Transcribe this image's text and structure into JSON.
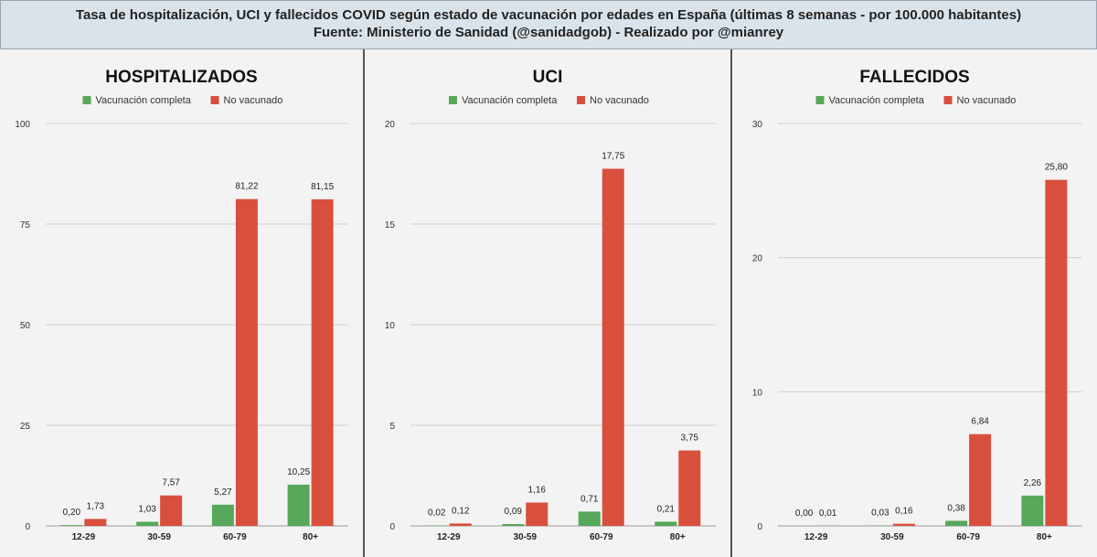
{
  "header": {
    "line1": "Tasa de hospitalización, UCI y fallecidos COVID según estado de vacunación por edades en España (últimas 8 semanas - por 100.000 habitantes)",
    "line2": "Fuente: Ministerio de Sanidad (@sanidadgob) - Realizado por @mianrey"
  },
  "chart_data": [
    {
      "type": "bar",
      "title": "HOSPITALIZADOS",
      "categories": [
        "12-29",
        "30-59",
        "60-79",
        "80+"
      ],
      "series": [
        {
          "name": "Vacunación completa",
          "color": "#57a85a",
          "values": [
            0.2,
            1.03,
            5.27,
            10.25
          ],
          "labels": [
            "0,20",
            "1,03",
            "5,27",
            "10,25"
          ]
        },
        {
          "name": "No vacunado",
          "color": "#d94f3d",
          "values": [
            1.73,
            7.57,
            81.22,
            81.15
          ],
          "labels": [
            "1,73",
            "7,57",
            "81,22",
            "81,15"
          ]
        }
      ],
      "ylim": [
        0,
        100
      ],
      "yticks": [
        0,
        25,
        50,
        75,
        100
      ],
      "grid": true,
      "legend": "top"
    },
    {
      "type": "bar",
      "title": "UCI",
      "categories": [
        "12-29",
        "30-59",
        "60-79",
        "80+"
      ],
      "series": [
        {
          "name": "Vacunación completa",
          "color": "#57a85a",
          "values": [
            0.02,
            0.09,
            0.71,
            0.21
          ],
          "labels": [
            "0,02",
            "0,09",
            "0,71",
            "0,21"
          ]
        },
        {
          "name": "No vacunado",
          "color": "#d94f3d",
          "values": [
            0.12,
            1.16,
            17.75,
            3.75
          ],
          "labels": [
            "0,12",
            "1,16",
            "17,75",
            "3,75"
          ]
        }
      ],
      "ylim": [
        0,
        20
      ],
      "yticks": [
        0,
        5,
        10,
        15,
        20
      ],
      "grid": true,
      "legend": "top"
    },
    {
      "type": "bar",
      "title": "FALLECIDOS",
      "categories": [
        "12-29",
        "30-59",
        "60-79",
        "80+"
      ],
      "series": [
        {
          "name": "Vacunación completa",
          "color": "#57a85a",
          "values": [
            0.0,
            0.03,
            0.38,
            2.26
          ],
          "labels": [
            "0,00",
            "0,03",
            "0,38",
            "2,26"
          ]
        },
        {
          "name": "No vacunado",
          "color": "#d94f3d",
          "values": [
            0.01,
            0.16,
            6.84,
            25.8
          ],
          "labels": [
            "0,01",
            "0,16",
            "6,84",
            "25,80"
          ]
        }
      ],
      "ylim": [
        0,
        30
      ],
      "yticks": [
        0,
        10,
        20,
        30
      ],
      "grid": true,
      "legend": "top"
    }
  ]
}
